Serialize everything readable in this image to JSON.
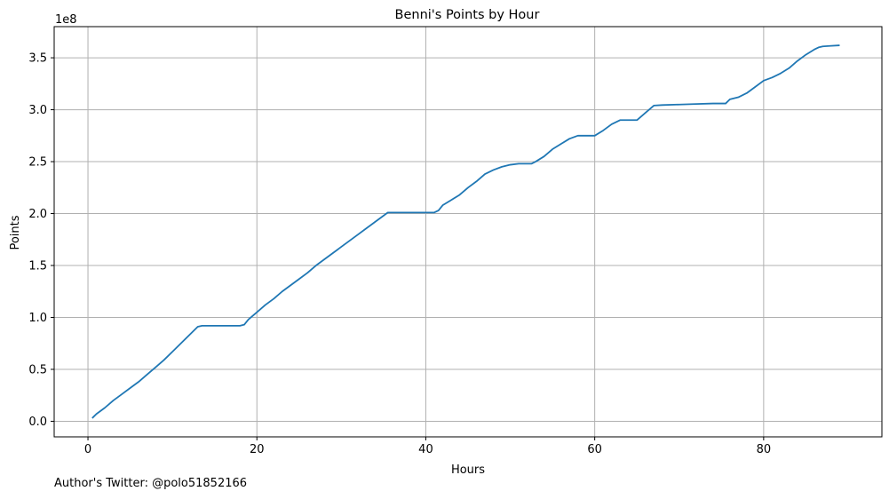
{
  "chart_data": {
    "type": "line",
    "title": "Benni's Points by Hour",
    "xlabel": "Hours",
    "ylabel": "Points",
    "y_offset_label": "1e8",
    "xlim": [
      -4,
      94
    ],
    "ylim": [
      -0.15,
      3.8
    ],
    "y_scale_note": "y values in units of 1e8 points",
    "xticks": [
      0,
      20,
      40,
      60,
      80
    ],
    "xtick_labels": [
      "0",
      "20",
      "40",
      "60",
      "80"
    ],
    "yticks": [
      0.0,
      0.5,
      1.0,
      1.5,
      2.0,
      2.5,
      3.0,
      3.5
    ],
    "ytick_labels": [
      "0.0",
      "0.5",
      "1.0",
      "1.5",
      "2.0",
      "2.5",
      "3.0",
      "3.5"
    ],
    "grid": true,
    "color": "#1f77b4",
    "series": [
      {
        "x": [
          0.5,
          1,
          2,
          3,
          4,
          5,
          6,
          7,
          8,
          9,
          10,
          11,
          12,
          13,
          13.5,
          15,
          16,
          17,
          18,
          18.5,
          19,
          20,
          21,
          22,
          23,
          24,
          25,
          26,
          27,
          28,
          29,
          30,
          31,
          32,
          33,
          34,
          35,
          35.5,
          36,
          38,
          40,
          41,
          41.5,
          42,
          43,
          44,
          45,
          46,
          47,
          48,
          49,
          50,
          51,
          52,
          52.5,
          53,
          54,
          55,
          56,
          57,
          58,
          59,
          60,
          61,
          62,
          63,
          64,
          65,
          66,
          67,
          68,
          70,
          72,
          74,
          75.5,
          76,
          77,
          78,
          79,
          80,
          81,
          82,
          83,
          84,
          85,
          86,
          86.5,
          87,
          88,
          89
        ],
        "y": [
          0.03,
          0.07,
          0.13,
          0.2,
          0.26,
          0.32,
          0.38,
          0.45,
          0.52,
          0.59,
          0.67,
          0.75,
          0.83,
          0.91,
          0.92,
          0.92,
          0.92,
          0.92,
          0.92,
          0.93,
          0.98,
          1.05,
          1.12,
          1.18,
          1.25,
          1.31,
          1.37,
          1.43,
          1.5,
          1.56,
          1.62,
          1.68,
          1.74,
          1.8,
          1.86,
          1.92,
          1.98,
          2.01,
          2.01,
          2.01,
          2.01,
          2.01,
          2.03,
          2.08,
          2.13,
          2.18,
          2.25,
          2.31,
          2.38,
          2.42,
          2.45,
          2.47,
          2.48,
          2.48,
          2.48,
          2.5,
          2.55,
          2.62,
          2.67,
          2.72,
          2.75,
          2.75,
          2.75,
          2.8,
          2.86,
          2.9,
          2.9,
          2.9,
          2.97,
          3.04,
          3.045,
          3.05,
          3.055,
          3.06,
          3.06,
          3.1,
          3.12,
          3.16,
          3.22,
          3.28,
          3.31,
          3.35,
          3.4,
          3.47,
          3.53,
          3.58,
          3.6,
          3.61,
          3.615,
          3.62
        ]
      }
    ]
  },
  "footer": {
    "credit": "Author's Twitter: @polo51852166"
  }
}
